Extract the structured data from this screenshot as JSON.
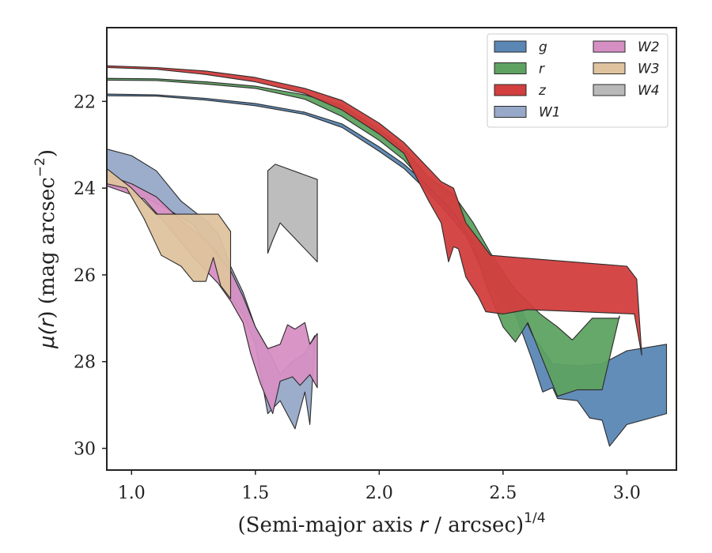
{
  "chart_data": {
    "type": "area",
    "xlabel_main": "(Semi-major axis ",
    "xlabel_var": "r",
    "xlabel_tail": " / arcsec)",
    "xlabel_exp": "1/4",
    "ylabel_main": "μ(",
    "ylabel_var": "r",
    "ylabel_tail": ") (mag arcsec",
    "ylabel_exp": "−2",
    "ylabel_end": ")",
    "xlim": [
      0.9,
      3.2
    ],
    "ylim": [
      30.5,
      20.3
    ],
    "y_inverted": true,
    "xticks": [
      "1.0",
      "1.5",
      "2.0",
      "2.5",
      "3.0"
    ],
    "xtick_values": [
      1.0,
      1.5,
      2.0,
      2.5,
      3.0
    ],
    "yticks": [
      "22",
      "24",
      "26",
      "28",
      "30"
    ],
    "ytick_values": [
      22,
      24,
      26,
      28,
      30
    ],
    "grid": false,
    "legend": "top-right",
    "series": [
      {
        "name": "g",
        "color": "#5a87b4",
        "upper": [
          [
            0.9,
            21.83
          ],
          [
            1.1,
            21.85
          ],
          [
            1.3,
            21.93
          ],
          [
            1.5,
            22.05
          ],
          [
            1.7,
            22.25
          ],
          [
            1.85,
            22.52
          ],
          [
            2.0,
            23.05
          ],
          [
            2.1,
            23.45
          ],
          [
            2.2,
            23.95
          ],
          [
            2.3,
            24.6
          ],
          [
            2.35,
            24.85
          ],
          [
            2.45,
            25.6
          ],
          [
            2.55,
            26.5
          ],
          [
            2.62,
            27.4
          ],
          [
            2.7,
            28.05
          ],
          [
            2.8,
            28.1
          ],
          [
            2.9,
            28.05
          ],
          [
            3.0,
            27.75
          ],
          [
            3.16,
            27.6
          ]
        ],
        "lower": [
          [
            3.16,
            29.2
          ],
          [
            3.0,
            29.45
          ],
          [
            2.93,
            29.95
          ],
          [
            2.9,
            29.35
          ],
          [
            2.85,
            29.3
          ],
          [
            2.8,
            28.9
          ],
          [
            2.72,
            28.85
          ],
          [
            2.7,
            28.6
          ],
          [
            2.66,
            28.7
          ],
          [
            2.62,
            28.0
          ],
          [
            2.55,
            26.9
          ],
          [
            2.45,
            26.3
          ],
          [
            2.35,
            25.1
          ],
          [
            2.3,
            24.75
          ],
          [
            2.2,
            24.1
          ],
          [
            2.1,
            23.55
          ],
          [
            2.0,
            23.15
          ],
          [
            1.85,
            22.6
          ],
          [
            1.7,
            22.3
          ],
          [
            1.5,
            22.1
          ],
          [
            1.3,
            21.97
          ],
          [
            1.1,
            21.88
          ],
          [
            0.9,
            21.87
          ]
        ]
      },
      {
        "name": "r",
        "color": "#5ea262",
        "upper": [
          [
            0.9,
            21.47
          ],
          [
            1.1,
            21.48
          ],
          [
            1.3,
            21.55
          ],
          [
            1.5,
            21.65
          ],
          [
            1.7,
            21.85
          ],
          [
            1.85,
            22.1
          ],
          [
            2.0,
            22.65
          ],
          [
            2.1,
            23.1
          ],
          [
            2.2,
            23.75
          ],
          [
            2.3,
            24.15
          ],
          [
            2.38,
            24.8
          ],
          [
            2.45,
            25.5
          ],
          [
            2.55,
            26.35
          ],
          [
            2.65,
            26.9
          ],
          [
            2.72,
            27.2
          ],
          [
            2.78,
            27.5
          ],
          [
            2.86,
            27.0
          ],
          [
            2.97,
            27.0
          ]
        ],
        "lower": [
          [
            2.97,
            26.95
          ],
          [
            2.9,
            28.65
          ],
          [
            2.8,
            28.65
          ],
          [
            2.72,
            28.8
          ],
          [
            2.67,
            28.1
          ],
          [
            2.6,
            27.1
          ],
          [
            2.55,
            27.55
          ],
          [
            2.5,
            27.2
          ],
          [
            2.43,
            26.2
          ],
          [
            2.38,
            25.3
          ],
          [
            2.3,
            24.55
          ],
          [
            2.2,
            24.0
          ],
          [
            2.1,
            23.35
          ],
          [
            2.0,
            22.9
          ],
          [
            1.85,
            22.35
          ],
          [
            1.7,
            21.95
          ],
          [
            1.5,
            21.7
          ],
          [
            1.3,
            21.6
          ],
          [
            1.1,
            21.52
          ],
          [
            0.9,
            21.51
          ]
        ]
      },
      {
        "name": "z",
        "color": "#d33e3e",
        "upper": [
          [
            0.9,
            21.18
          ],
          [
            1.1,
            21.22
          ],
          [
            1.3,
            21.3
          ],
          [
            1.5,
            21.45
          ],
          [
            1.7,
            21.7
          ],
          [
            1.85,
            21.98
          ],
          [
            2.0,
            22.5
          ],
          [
            2.1,
            22.95
          ],
          [
            2.2,
            23.55
          ],
          [
            2.25,
            23.85
          ],
          [
            2.3,
            24.0
          ],
          [
            2.35,
            24.8
          ],
          [
            2.45,
            25.55
          ],
          [
            3.0,
            25.8
          ],
          [
            3.04,
            26.1
          ],
          [
            3.06,
            27.85
          ]
        ],
        "lower": [
          [
            3.06,
            27.85
          ],
          [
            3.03,
            26.9
          ],
          [
            2.6,
            26.8
          ],
          [
            2.5,
            26.9
          ],
          [
            2.43,
            26.85
          ],
          [
            2.4,
            26.5
          ],
          [
            2.35,
            26.05
          ],
          [
            2.32,
            25.4
          ],
          [
            2.3,
            25.35
          ],
          [
            2.28,
            25.7
          ],
          [
            2.25,
            24.8
          ],
          [
            2.2,
            24.3
          ],
          [
            2.1,
            23.2
          ],
          [
            2.0,
            22.75
          ],
          [
            1.85,
            22.2
          ],
          [
            1.7,
            21.82
          ],
          [
            1.5,
            21.55
          ],
          [
            1.3,
            21.38
          ],
          [
            1.1,
            21.26
          ],
          [
            0.9,
            21.22
          ]
        ]
      },
      {
        "name": "W1",
        "color": "#97a8c8",
        "upper": [
          [
            0.9,
            23.1
          ],
          [
            1.0,
            23.25
          ],
          [
            1.1,
            23.6
          ],
          [
            1.2,
            24.3
          ],
          [
            1.3,
            24.75
          ],
          [
            1.35,
            25.05
          ],
          [
            1.4,
            25.8
          ],
          [
            1.45,
            26.4
          ],
          [
            1.5,
            27.2
          ],
          [
            1.55,
            27.7
          ],
          [
            1.6,
            28.3
          ],
          [
            1.65,
            28.0
          ],
          [
            1.7,
            27.8
          ],
          [
            1.74,
            27.4
          ]
        ],
        "lower": [
          [
            1.74,
            27.5
          ],
          [
            1.72,
            29.45
          ],
          [
            1.7,
            28.7
          ],
          [
            1.66,
            29.55
          ],
          [
            1.6,
            28.9
          ],
          [
            1.55,
            29.2
          ],
          [
            1.5,
            27.6
          ],
          [
            1.45,
            26.9
          ],
          [
            1.4,
            26.55
          ],
          [
            1.35,
            25.5
          ],
          [
            1.3,
            25.25
          ],
          [
            1.25,
            24.85
          ],
          [
            1.15,
            24.5
          ],
          [
            1.0,
            24.05
          ],
          [
            0.9,
            23.95
          ]
        ]
      },
      {
        "name": "W2",
        "color": "#d68fc3",
        "upper": [
          [
            0.9,
            23.7
          ],
          [
            1.0,
            23.9
          ],
          [
            1.1,
            24.2
          ],
          [
            1.2,
            24.75
          ],
          [
            1.3,
            25.2
          ],
          [
            1.4,
            25.9
          ],
          [
            1.45,
            26.5
          ],
          [
            1.5,
            27.2
          ],
          [
            1.55,
            27.7
          ],
          [
            1.6,
            27.6
          ],
          [
            1.63,
            27.15
          ],
          [
            1.66,
            27.25
          ],
          [
            1.7,
            27.1
          ],
          [
            1.72,
            27.6
          ],
          [
            1.75,
            27.35
          ]
        ],
        "lower": [
          [
            1.75,
            28.6
          ],
          [
            1.72,
            28.3
          ],
          [
            1.68,
            28.55
          ],
          [
            1.65,
            28.35
          ],
          [
            1.6,
            28.45
          ],
          [
            1.57,
            29.2
          ],
          [
            1.52,
            28.5
          ],
          [
            1.48,
            27.8
          ],
          [
            1.45,
            27.1
          ],
          [
            1.4,
            26.6
          ],
          [
            1.35,
            26.2
          ],
          [
            1.25,
            25.6
          ],
          [
            1.15,
            24.9
          ],
          [
            1.05,
            24.25
          ],
          [
            0.9,
            23.95
          ]
        ]
      },
      {
        "name": "W3",
        "color": "#dfc39e",
        "upper": [
          [
            0.9,
            23.55
          ],
          [
            1.0,
            24.0
          ],
          [
            1.1,
            24.6
          ],
          [
            1.35,
            24.6
          ],
          [
            1.4,
            25.0
          ]
        ],
        "lower": [
          [
            1.4,
            26.55
          ],
          [
            1.36,
            26.25
          ],
          [
            1.33,
            25.6
          ],
          [
            1.3,
            26.15
          ],
          [
            1.25,
            26.15
          ],
          [
            1.2,
            25.8
          ],
          [
            1.12,
            25.55
          ],
          [
            1.05,
            24.7
          ],
          [
            0.98,
            24.0
          ],
          [
            0.9,
            23.9
          ]
        ]
      },
      {
        "name": "W4",
        "color": "#b9b9b9",
        "upper": [
          [
            1.55,
            23.6
          ],
          [
            1.58,
            23.45
          ],
          [
            1.75,
            23.8
          ]
        ],
        "lower": [
          [
            1.75,
            25.7
          ],
          [
            1.6,
            24.8
          ],
          [
            1.57,
            25.2
          ],
          [
            1.55,
            25.5
          ]
        ]
      }
    ],
    "legend_left": [
      "g",
      "r",
      "z",
      "W1"
    ],
    "legend_right": [
      "W2",
      "W3",
      "W4"
    ]
  }
}
